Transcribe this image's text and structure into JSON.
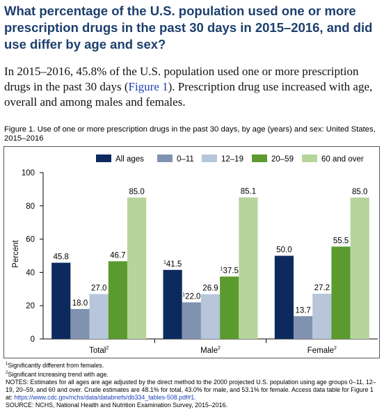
{
  "heading": "What percentage of the U.S. population used one or more prescription drugs in the past 30 days in 2015–2016, and did use differ by age and sex?",
  "paragraph": {
    "before": "In 2015–2016, 45.8% of the U.S. population used one or more prescription drugs in the past 30 days (",
    "link": "Figure 1",
    "after": "). Prescription drug use increased with age, overall and among males and females."
  },
  "caption": "Figure 1. Use of one or more prescription drugs in the past 30 days, by age (years) and sex: United States, 2015–2016",
  "chart_data": {
    "type": "bar",
    "categories": [
      "Total",
      "Male",
      "Female"
    ],
    "category_notes": [
      "2",
      "2",
      "2"
    ],
    "y_label": "Percent",
    "ylim": [
      0,
      100
    ],
    "yticks": [
      0,
      20,
      40,
      60,
      80,
      100
    ],
    "grid": false,
    "series": [
      {
        "name": "All ages",
        "color": "#0d2a5e",
        "values": [
          45.8,
          41.5,
          50.0
        ],
        "value_labels": [
          "45.8",
          "41.5",
          "50.0"
        ],
        "value_notes": [
          null,
          "1",
          null
        ]
      },
      {
        "name": "0–11",
        "color": "#7f93b0",
        "values": [
          18.0,
          22.0,
          13.7
        ],
        "value_labels": [
          "18.0",
          "22.0",
          "13.7"
        ],
        "value_notes": [
          null,
          "1",
          null
        ]
      },
      {
        "name": "12–19",
        "color": "#b7c6da",
        "values": [
          27.0,
          26.9,
          27.2
        ],
        "value_labels": [
          "27.0",
          "26.9",
          "27.2"
        ],
        "value_notes": [
          null,
          null,
          null
        ]
      },
      {
        "name": "20–59",
        "color": "#5b9a2f",
        "values": [
          46.7,
          37.5,
          55.5
        ],
        "value_labels": [
          "46.7",
          "37.5",
          "55.5"
        ],
        "value_notes": [
          null,
          "1",
          null
        ]
      },
      {
        "name": "60 and over",
        "color": "#b6d59c",
        "values": [
          85.0,
          85.1,
          85.0
        ],
        "value_labels": [
          "85.0",
          "85.1",
          "85.0"
        ],
        "value_notes": [
          null,
          null,
          null
        ]
      }
    ]
  },
  "footnotes": [
    {
      "mark": "1",
      "text": "Significantly different from females."
    },
    {
      "mark": "2",
      "text": "Significant increasing trend with age."
    }
  ],
  "notes": {
    "before": "NOTES: Estimates for all ages are age adjusted by the direct method to the 2000 projected U.S. population using age groups 0–11, 12–19, 20–59, and 60 and over. Crude estimates are 48.1% for total, 43.0% for male, and 53.1% for female. Access data table for Figure 1 at: ",
    "link": "https://www.cdc.gov/nchs/data/databriefs/db334_tables-508.pdf#1."
  },
  "source": "SOURCE: NCHS, National Health and Nutrition Examination Survey, 2015–2016."
}
